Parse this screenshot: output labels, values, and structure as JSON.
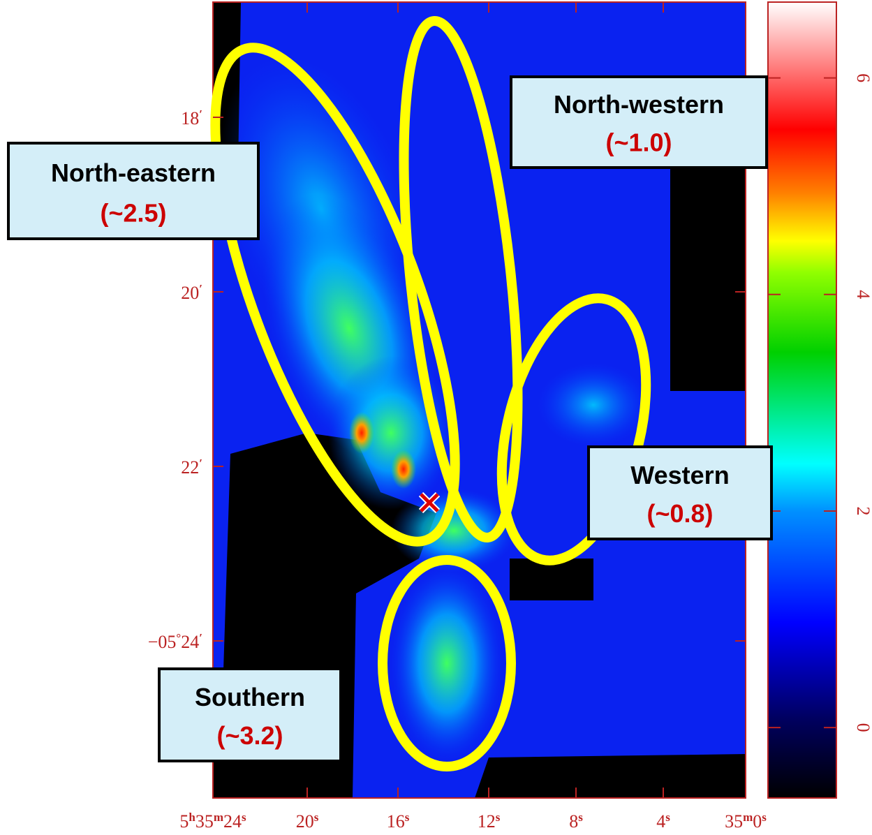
{
  "x_axis": {
    "ticks": [
      [
        "5",
        "h",
        "35",
        "m",
        "24",
        "s"
      ],
      [
        "20",
        "s"
      ],
      [
        "16",
        "s"
      ],
      [
        "12",
        "s"
      ],
      [
        "8",
        "s"
      ],
      [
        "4",
        "s"
      ],
      [
        "35",
        "m",
        "0",
        "s"
      ]
    ]
  },
  "y_axis": {
    "ticks": [
      [
        "18",
        "′"
      ],
      [
        "20",
        "′"
      ],
      [
        "22",
        "′"
      ],
      [
        "−05",
        "°",
        "24",
        "′"
      ]
    ]
  },
  "colorbar": {
    "lim": [
      -0.65,
      6.7
    ],
    "ticks": [
      0,
      2,
      4,
      6
    ]
  },
  "regions": [
    {
      "name": "North-eastern",
      "value": "(~2.5)"
    },
    {
      "name": "North-western",
      "value": "(~1.0)"
    },
    {
      "name": "Western",
      "value": "(~0.8)"
    },
    {
      "name": "Southern",
      "value": "(~3.2)"
    }
  ]
}
